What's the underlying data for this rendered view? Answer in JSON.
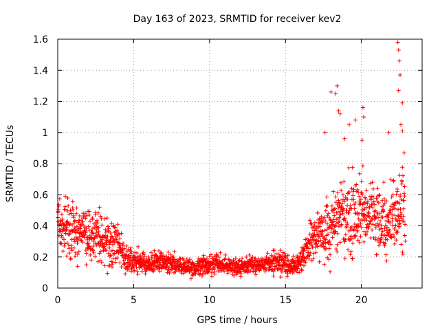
{
  "chart_data": {
    "type": "scatter",
    "title": "Day 163 of 2023, SRMTID for receiver kev2",
    "xlabel": "GPS time / hours",
    "ylabel": "SRMTID / TECUs",
    "xlim": [
      0,
      24
    ],
    "ylim": [
      0,
      1.6
    ],
    "x_ticks": [
      "0",
      "5",
      "10",
      "15",
      "20"
    ],
    "y_ticks": [
      "0",
      "0.2",
      "0.4",
      "0.6",
      "0.8",
      "1",
      "1.2",
      "1.4",
      "1.6"
    ],
    "grid": true,
    "marker": "+",
    "color": "#ff0000",
    "envelope": {
      "x_hours": [
        0,
        0.5,
        1,
        1.5,
        2,
        2.5,
        3,
        3.5,
        4,
        4.5,
        5,
        5.5,
        6,
        7,
        8,
        8.5,
        9,
        9.5,
        10,
        11,
        12,
        13,
        14,
        14.5,
        15,
        15.5,
        16,
        16.5,
        17,
        17.5,
        18,
        18.5,
        19,
        19.5,
        20,
        20.5,
        21,
        21.5,
        22,
        22.5,
        23
      ],
      "typical_value": [
        0.42,
        0.4,
        0.36,
        0.35,
        0.36,
        0.38,
        0.3,
        0.27,
        0.28,
        0.2,
        0.17,
        0.16,
        0.16,
        0.17,
        0.15,
        0.13,
        0.12,
        0.15,
        0.16,
        0.15,
        0.14,
        0.15,
        0.16,
        0.17,
        0.14,
        0.13,
        0.18,
        0.26,
        0.32,
        0.36,
        0.4,
        0.44,
        0.46,
        0.46,
        0.48,
        0.48,
        0.44,
        0.42,
        0.45,
        0.5,
        0.55
      ],
      "spread": [
        0.18,
        0.17,
        0.17,
        0.15,
        0.16,
        0.16,
        0.13,
        0.13,
        0.14,
        0.09,
        0.07,
        0.06,
        0.06,
        0.06,
        0.06,
        0.05,
        0.05,
        0.06,
        0.06,
        0.05,
        0.05,
        0.05,
        0.06,
        0.07,
        0.06,
        0.05,
        0.07,
        0.1,
        0.14,
        0.18,
        0.22,
        0.22,
        0.22,
        0.22,
        0.24,
        0.22,
        0.2,
        0.2,
        0.22,
        0.24,
        0.26
      ]
    },
    "n_points_approx": 1900,
    "outliers": [
      {
        "x": 17.6,
        "y": 1.0
      },
      {
        "x": 18.0,
        "y": 1.26
      },
      {
        "x": 18.3,
        "y": 1.25
      },
      {
        "x": 18.4,
        "y": 1.3
      },
      {
        "x": 18.5,
        "y": 1.14
      },
      {
        "x": 18.6,
        "y": 1.12
      },
      {
        "x": 18.9,
        "y": 0.96
      },
      {
        "x": 19.2,
        "y": 1.05
      },
      {
        "x": 19.6,
        "y": 1.08
      },
      {
        "x": 20.1,
        "y": 1.16
      },
      {
        "x": 20.15,
        "y": 1.1
      },
      {
        "x": 20.05,
        "y": 0.95
      },
      {
        "x": 22.4,
        "y": 1.58
      },
      {
        "x": 22.45,
        "y": 1.53
      },
      {
        "x": 22.5,
        "y": 1.46
      },
      {
        "x": 22.55,
        "y": 1.37
      },
      {
        "x": 22.45,
        "y": 1.27
      },
      {
        "x": 22.7,
        "y": 1.19
      },
      {
        "x": 22.6,
        "y": 1.05
      },
      {
        "x": 22.7,
        "y": 1.01
      },
      {
        "x": 21.8,
        "y": 1.0
      }
    ]
  }
}
